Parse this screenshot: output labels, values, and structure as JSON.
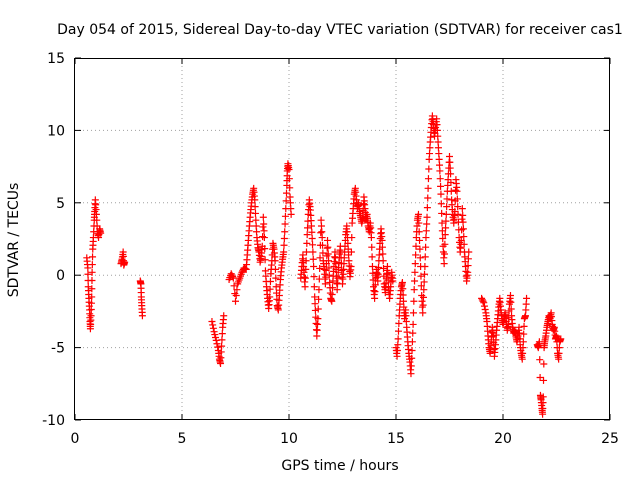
{
  "chart_data": {
    "type": "scatter",
    "title": "Day 054 of 2015, Sidereal Day-to-day VTEC variation (SDTVAR) for receiver cas1",
    "xlabel": "GPS time / hours",
    "ylabel": "SDTVAR / TECUs",
    "xlim": [
      0,
      25
    ],
    "ylim": [
      -10,
      15
    ],
    "xticks": [
      0,
      5,
      10,
      15,
      20,
      25
    ],
    "yticks": [
      -10,
      -5,
      0,
      5,
      10,
      15
    ],
    "xtick_labels": [
      "0",
      "5",
      "10",
      "15",
      "20",
      "25"
    ],
    "ytick_labels": [
      "-10",
      "-5",
      "0",
      "5",
      "10",
      "15"
    ],
    "grid": true,
    "marker": "+",
    "color": "#ff0000",
    "segments": [
      [
        0.55,
        1.2
      ],
      [
        0.6,
        0.5
      ],
      [
        0.62,
        -0.8
      ],
      [
        0.65,
        -1.6
      ],
      [
        0.68,
        -2.4
      ],
      [
        0.7,
        -3.2
      ],
      [
        0.72,
        -3.7
      ],
      [
        0.75,
        -2.8
      ],
      [
        0.78,
        -1.5
      ],
      [
        0.8,
        0.2
      ],
      [
        0.83,
        1.8
      ],
      [
        0.86,
        2.6
      ],
      [
        0.9,
        3.8
      ],
      [
        0.92,
        4.4
      ],
      [
        0.95,
        5.2
      ],
      [
        1.0,
        4.2
      ],
      [
        1.05,
        3.0
      ],
      [
        1.1,
        2.6
      ],
      [
        1.15,
        3.2
      ],
      [
        1.2,
        2.9
      ],
      [
        2.15,
        0.8
      ],
      [
        2.2,
        1.1
      ],
      [
        2.25,
        1.6
      ],
      [
        2.28,
        0.7
      ],
      [
        2.32,
        0.9
      ],
      [
        3.05,
        -0.4
      ],
      [
        3.08,
        -0.6
      ],
      [
        3.1,
        -1.5
      ],
      [
        3.12,
        -2.1
      ],
      [
        3.15,
        -2.8
      ],
      [
        6.4,
        -3.2
      ],
      [
        6.5,
        -3.9
      ],
      [
        6.6,
        -4.5
      ],
      [
        6.7,
        -5.2
      ],
      [
        6.75,
        -5.8
      ],
      [
        6.8,
        -6.1
      ],
      [
        6.85,
        -4.9
      ],
      [
        6.9,
        -3.6
      ],
      [
        6.95,
        -2.8
      ],
      [
        7.2,
        -0.3
      ],
      [
        7.3,
        0.1
      ],
      [
        7.4,
        -0.2
      ],
      [
        7.5,
        -1.8
      ],
      [
        7.6,
        -0.6
      ],
      [
        7.7,
        -0.2
      ],
      [
        7.8,
        0.2
      ],
      [
        7.9,
        0.5
      ],
      [
        8.0,
        0.4
      ],
      [
        8.05,
        1.4
      ],
      [
        8.1,
        2.4
      ],
      [
        8.15,
        3.4
      ],
      [
        8.2,
        4.3
      ],
      [
        8.25,
        5.0
      ],
      [
        8.3,
        5.6
      ],
      [
        8.35,
        6.0
      ],
      [
        8.4,
        5.2
      ],
      [
        8.45,
        3.8
      ],
      [
        8.5,
        2.6
      ],
      [
        8.55,
        1.9
      ],
      [
        8.6,
        1.6
      ],
      [
        8.65,
        0.9
      ],
      [
        8.7,
        1.3
      ],
      [
        8.75,
        2.0
      ],
      [
        8.8,
        4.0
      ],
      [
        8.85,
        2.6
      ],
      [
        8.9,
        0.3
      ],
      [
        8.95,
        -0.8
      ],
      [
        9.0,
        -1.6
      ],
      [
        9.05,
        -2.3
      ],
      [
        9.1,
        -1.5
      ],
      [
        9.15,
        0.1
      ],
      [
        9.2,
        1.0
      ],
      [
        9.25,
        2.2
      ],
      [
        9.3,
        1.8
      ],
      [
        9.35,
        1.0
      ],
      [
        9.4,
        -0.8
      ],
      [
        9.45,
        -2.1
      ],
      [
        9.5,
        -2.4
      ],
      [
        9.55,
        -1.4
      ],
      [
        9.6,
        -0.3
      ],
      [
        9.65,
        0.5
      ],
      [
        9.7,
        1.1
      ],
      [
        9.75,
        1.6
      ],
      [
        9.8,
        3.0
      ],
      [
        9.85,
        4.6
      ],
      [
        9.9,
        6.2
      ],
      [
        9.92,
        7.2
      ],
      [
        9.95,
        7.7
      ],
      [
        10.0,
        7.3
      ],
      [
        10.05,
        5.4
      ],
      [
        10.1,
        4.2
      ]
    ],
    "segments_2": [
      [
        10.55,
        -0.2
      ],
      [
        10.6,
        0.6
      ],
      [
        10.65,
        1.4
      ],
      [
        10.7,
        0.2
      ],
      [
        10.75,
        -0.8
      ],
      [
        10.8,
        1.0
      ],
      [
        10.85,
        2.8
      ],
      [
        10.9,
        4.2
      ],
      [
        10.95,
        5.2
      ],
      [
        11.0,
        4.5
      ],
      [
        11.05,
        3.4
      ],
      [
        11.1,
        2.1
      ],
      [
        11.15,
        0.6
      ],
      [
        11.2,
        -1.5
      ],
      [
        11.25,
        -2.9
      ],
      [
        11.3,
        -4.2
      ],
      [
        11.35,
        -3.0
      ],
      [
        11.4,
        -1.0
      ],
      [
        11.45,
        1.2
      ],
      [
        11.5,
        3.8
      ],
      [
        11.55,
        2.6
      ],
      [
        11.6,
        1.0
      ],
      [
        11.65,
        0.4
      ],
      [
        11.7,
        -0.6
      ],
      [
        11.75,
        0.8
      ],
      [
        11.8,
        2.4
      ],
      [
        11.85,
        1.0
      ],
      [
        11.9,
        -0.5
      ],
      [
        11.95,
        -1.6
      ],
      [
        12.0,
        -1.8
      ],
      [
        12.05,
        -0.4
      ],
      [
        12.1,
        0.6
      ],
      [
        12.15,
        1.6
      ],
      [
        12.2,
        0.4
      ],
      [
        12.25,
        -1.0
      ],
      [
        12.3,
        0.2
      ],
      [
        12.35,
        1.2
      ],
      [
        12.4,
        2.0
      ],
      [
        12.45,
        0.8
      ],
      [
        12.5,
        -0.6
      ],
      [
        12.55,
        0.4
      ],
      [
        12.6,
        1.6
      ],
      [
        12.65,
        2.8
      ],
      [
        12.7,
        3.4
      ],
      [
        12.75,
        2.2
      ],
      [
        12.8,
        1.0
      ],
      [
        12.85,
        -0.1
      ],
      [
        12.9,
        0.6
      ],
      [
        12.95,
        3.6
      ],
      [
        13.0,
        4.6
      ],
      [
        13.05,
        5.6
      ],
      [
        13.1,
        6.0
      ],
      [
        13.15,
        5.2
      ],
      [
        13.2,
        4.6
      ],
      [
        13.25,
        5.0
      ],
      [
        13.3,
        4.4
      ],
      [
        13.35,
        4.0
      ],
      [
        13.4,
        3.6
      ],
      [
        13.45,
        4.0
      ],
      [
        13.5,
        5.4
      ],
      [
        13.55,
        4.6
      ],
      [
        13.6,
        3.8
      ],
      [
        13.65,
        4.2
      ],
      [
        13.7,
        3.4
      ],
      [
        13.75,
        3.0
      ],
      [
        13.8,
        3.6
      ],
      [
        13.85,
        2.6
      ],
      [
        13.9,
        0.6
      ],
      [
        13.95,
        -0.8
      ],
      [
        14.0,
        -1.6
      ],
      [
        14.05,
        -0.2
      ],
      [
        14.1,
        0.4
      ],
      [
        14.15,
        -0.4
      ],
      [
        14.2,
        1.0
      ],
      [
        14.25,
        2.2
      ],
      [
        14.3,
        3.2
      ],
      [
        14.35,
        2.4
      ],
      [
        14.4,
        1.0
      ],
      [
        14.45,
        -0.6
      ],
      [
        14.5,
        -1.2
      ],
      [
        14.55,
        -0.2
      ],
      [
        14.6,
        0.6
      ],
      [
        14.65,
        -0.8
      ],
      [
        14.7,
        -1.6
      ],
      [
        14.75,
        -0.8
      ],
      [
        14.8,
        0.2
      ],
      [
        14.85,
        -0.4
      ]
    ],
    "segments_3": [
      [
        15.0,
        -5.0
      ],
      [
        15.05,
        -5.6
      ],
      [
        15.1,
        -4.4
      ],
      [
        15.15,
        -2.8
      ],
      [
        15.2,
        -1.6
      ],
      [
        15.25,
        -0.8
      ],
      [
        15.3,
        -0.5
      ],
      [
        15.35,
        -1.8
      ],
      [
        15.4,
        -3.0
      ],
      [
        15.45,
        -2.4
      ],
      [
        15.5,
        -3.6
      ],
      [
        15.55,
        -4.6
      ],
      [
        15.6,
        -5.4
      ],
      [
        15.65,
        -6.0
      ],
      [
        15.7,
        -6.8
      ],
      [
        15.75,
        -5.2
      ],
      [
        15.8,
        -3.4
      ],
      [
        15.85,
        -1.0
      ],
      [
        15.9,
        0.8
      ],
      [
        15.95,
        2.6
      ],
      [
        16.0,
        3.8
      ],
      [
        16.05,
        4.2
      ],
      [
        16.1,
        2.4
      ],
      [
        16.15,
        0.6
      ],
      [
        16.2,
        -1.4
      ],
      [
        16.25,
        -2.6
      ],
      [
        16.3,
        -1.0
      ],
      [
        16.35,
        0.6
      ],
      [
        16.4,
        2.6
      ],
      [
        16.45,
        4.0
      ],
      [
        16.5,
        6.0
      ],
      [
        16.55,
        8.0
      ],
      [
        16.6,
        9.2
      ],
      [
        16.65,
        10.2
      ],
      [
        16.7,
        11.0
      ],
      [
        16.75,
        10.4
      ],
      [
        16.8,
        9.6
      ],
      [
        16.85,
        10.2
      ],
      [
        16.9,
        10.8
      ],
      [
        16.95,
        9.6
      ],
      [
        17.0,
        8.4
      ],
      [
        17.05,
        7.2
      ],
      [
        17.1,
        5.6
      ],
      [
        17.15,
        3.6
      ],
      [
        17.2,
        2.0
      ],
      [
        17.25,
        0.8
      ],
      [
        17.3,
        2.8
      ],
      [
        17.35,
        4.2
      ],
      [
        17.4,
        5.8
      ],
      [
        17.45,
        7.0
      ],
      [
        17.5,
        8.2
      ],
      [
        17.55,
        7.0
      ],
      [
        17.6,
        5.2
      ],
      [
        17.65,
        4.2
      ],
      [
        17.7,
        3.6
      ],
      [
        17.75,
        4.4
      ],
      [
        17.8,
        6.6
      ],
      [
        17.85,
        5.8
      ],
      [
        17.9,
        4.2
      ],
      [
        17.95,
        2.6
      ],
      [
        18.0,
        1.6
      ],
      [
        18.05,
        2.4
      ],
      [
        18.1,
        4.6
      ],
      [
        18.15,
        3.2
      ],
      [
        18.2,
        1.6
      ],
      [
        18.25,
        0.6
      ],
      [
        18.3,
        -0.4
      ],
      [
        18.35,
        0.2
      ],
      [
        18.4,
        1.6
      ]
    ],
    "segments_4": [
      [
        19.0,
        -1.6
      ],
      [
        19.1,
        -1.9
      ],
      [
        19.2,
        -2.6
      ],
      [
        19.25,
        -3.2
      ],
      [
        19.3,
        -4.2
      ],
      [
        19.35,
        -5.0
      ],
      [
        19.4,
        -5.4
      ],
      [
        19.45,
        -4.6
      ],
      [
        19.5,
        -3.6
      ],
      [
        19.55,
        -4.2
      ],
      [
        19.6,
        -5.6
      ],
      [
        19.65,
        -4.8
      ],
      [
        19.7,
        -3.8
      ],
      [
        19.75,
        -3.0
      ],
      [
        19.8,
        -2.2
      ],
      [
        19.85,
        -1.6
      ],
      [
        19.9,
        -2.4
      ],
      [
        19.95,
        -3.0
      ],
      [
        20.0,
        -3.4
      ],
      [
        20.05,
        -3.0
      ],
      [
        20.1,
        -2.6
      ],
      [
        20.15,
        -3.2
      ],
      [
        20.2,
        -3.8
      ],
      [
        20.25,
        -3.4
      ],
      [
        20.3,
        -2.0
      ],
      [
        20.35,
        -1.4
      ],
      [
        20.4,
        -2.8
      ],
      [
        20.45,
        -3.6
      ],
      [
        20.5,
        -4.0
      ],
      [
        20.55,
        -3.8
      ],
      [
        20.6,
        -4.2
      ],
      [
        20.65,
        -4.6
      ],
      [
        20.7,
        -4.2
      ],
      [
        20.75,
        -3.6
      ],
      [
        20.8,
        -4.8
      ],
      [
        20.85,
        -5.4
      ],
      [
        20.9,
        -5.8
      ],
      [
        20.95,
        -4.6
      ],
      [
        21.0,
        -3.0
      ],
      [
        21.05,
        -2.8
      ],
      [
        21.1,
        -1.6
      ]
    ],
    "segments_5": [
      [
        21.6,
        -4.8
      ],
      [
        21.65,
        -5.0
      ],
      [
        21.7,
        -4.6
      ],
      [
        21.75,
        -8.3
      ],
      [
        21.78,
        -8.6
      ],
      [
        21.82,
        -9.2
      ],
      [
        21.85,
        -9.6
      ],
      [
        21.88,
        -8.4
      ],
      [
        21.92,
        -5.0
      ],
      [
        21.95,
        -4.6
      ],
      [
        22.0,
        -4.2
      ],
      [
        22.05,
        -3.6
      ],
      [
        22.1,
        -3.2
      ],
      [
        22.15,
        -2.8
      ],
      [
        22.2,
        -3.0
      ],
      [
        22.25,
        -2.6
      ],
      [
        22.3,
        -3.4
      ],
      [
        22.35,
        -3.8
      ],
      [
        22.4,
        -3.6
      ],
      [
        22.45,
        -4.4
      ],
      [
        22.5,
        -4.2
      ],
      [
        22.55,
        -5.4
      ],
      [
        22.6,
        -5.8
      ],
      [
        22.65,
        -4.6
      ],
      [
        22.7,
        -4.4
      ]
    ]
  }
}
